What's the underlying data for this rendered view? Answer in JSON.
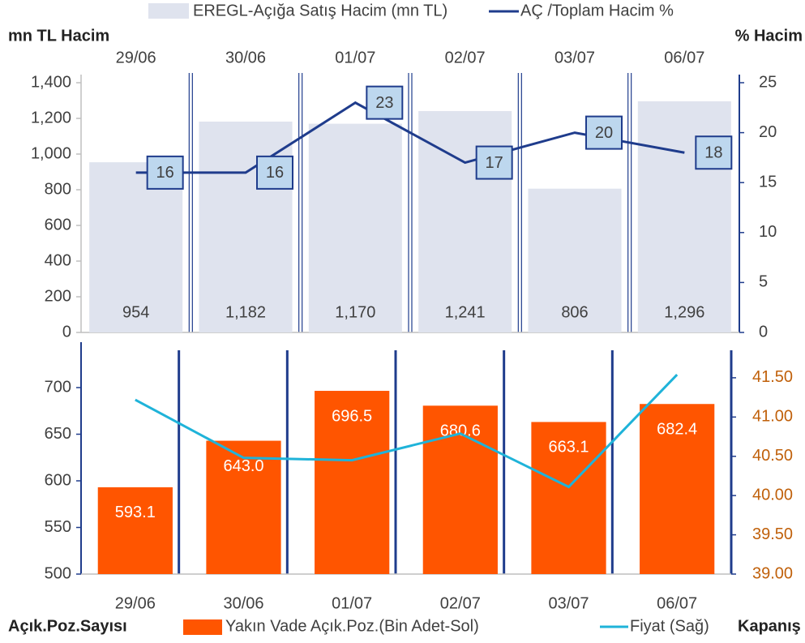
{
  "chart_data": [
    {
      "type": "bar",
      "categories": [
        "29/06",
        "30/06",
        "01/07",
        "02/07",
        "03/07",
        "06/07"
      ],
      "y_label": "mn TL Hacim",
      "y2_label": "% Hacim",
      "ylim": [
        0,
        1400
      ],
      "yticks": [
        0,
        200,
        400,
        600,
        800,
        {
          "value": 1000,
          "label": "1,000"
        },
        {
          "value": 1200,
          "label": "1,200"
        },
        {
          "value": 1400,
          "label": "1,400"
        }
      ],
      "y2lim": [
        0,
        25
      ],
      "y2ticks": [
        0,
        5,
        10,
        15,
        20,
        25
      ],
      "series": [
        {
          "name": "EREGL-Açığa Satış Hacim (mn TL)",
          "type": "bar",
          "color": "#dfe3ee",
          "values": [
            954,
            1182,
            1170,
            1241,
            806,
            1296
          ],
          "value_labels": [
            "954",
            "1,182",
            "1,170",
            "1,241",
            "806",
            "1,296"
          ]
        },
        {
          "name": "AÇ /Toplam Hacim %",
          "type": "line",
          "axis": "y2",
          "color": "#1f3c8c",
          "values": [
            16,
            16,
            23,
            17,
            20,
            18
          ]
        }
      ]
    },
    {
      "type": "bar",
      "categories": [
        "29/06",
        "30/06",
        "01/07",
        "02/07",
        "03/07",
        "06/07"
      ],
      "y_label": "Açık.Poz.Sayısı",
      "y2_label": "Kapanış",
      "ylim": [
        500,
        740
      ],
      "yticks": [
        500,
        550,
        600,
        650,
        700
      ],
      "y2lim": [
        39,
        41.85
      ],
      "y2ticks": [
        {
          "value": 39,
          "label": "39.00"
        },
        {
          "value": 39.5,
          "label": "39.50"
        },
        {
          "value": 40,
          "label": "40.00"
        },
        {
          "value": 40.5,
          "label": "40.50"
        },
        {
          "value": 41,
          "label": "41.00"
        },
        {
          "value": 41.5,
          "label": "41.50"
        }
      ],
      "series": [
        {
          "name": "Yakın Vade Açık.Poz.(Bin Adet-Sol)",
          "type": "bar",
          "color": "#ff5500",
          "values": [
            593.1,
            643.0,
            696.5,
            680.6,
            663.1,
            682.4
          ],
          "value_labels": [
            "593.1",
            "643.0",
            "696.5",
            "680.6",
            "663.1",
            "682.4"
          ]
        },
        {
          "name": "Fiyat (Sağ)",
          "type": "line",
          "axis": "y2",
          "color": "#1fb3d9",
          "values": [
            41.22,
            40.48,
            40.45,
            40.79,
            40.11,
            41.54
          ]
        }
      ]
    }
  ]
}
